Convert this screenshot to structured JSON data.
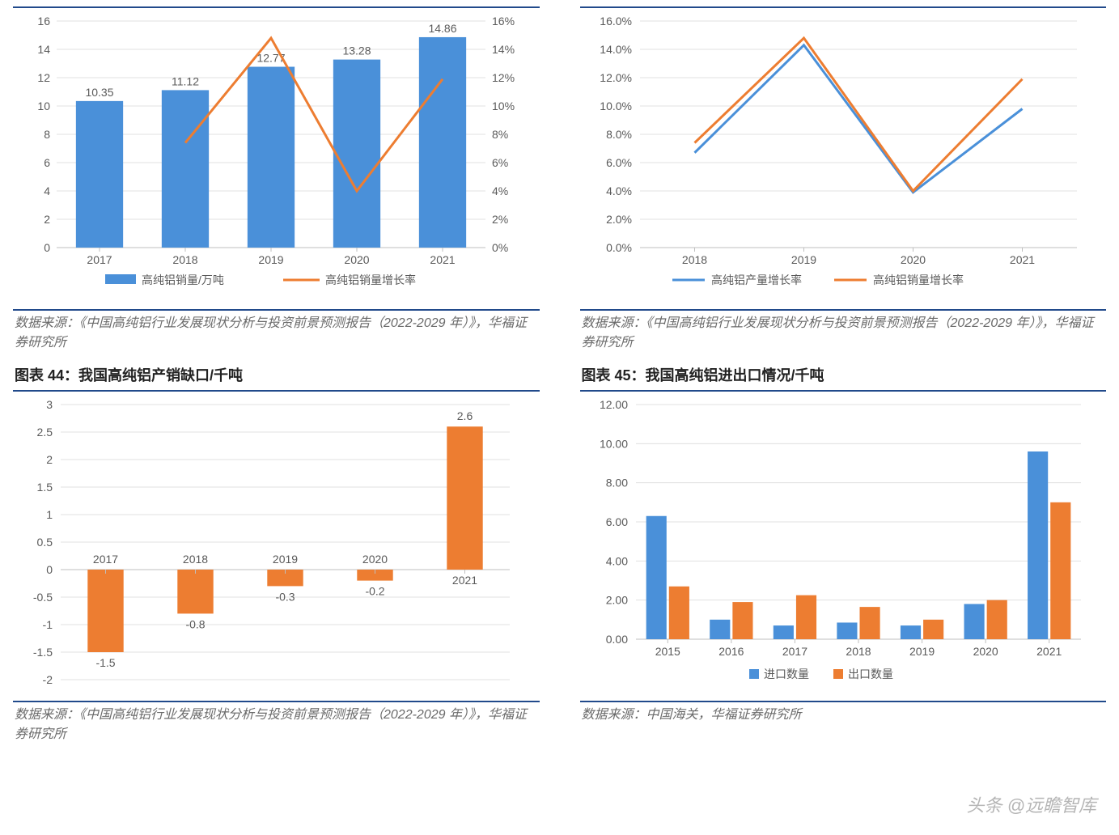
{
  "colors": {
    "blue": "#4a90d9",
    "orange": "#ed7d31",
    "grid": "#e0e0e0",
    "axis": "#bfbfbf",
    "border": "#214a8b",
    "text": "#5a5a5a"
  },
  "watermark": "头条 @远瞻智库",
  "panels": {
    "tl": {
      "source": "数据来源：《中国高纯铝行业发展现状分析与投资前景预测报告（2022-2029 年）》，华福证券研究所",
      "chart": {
        "type": "bar+line-dual-axis",
        "categories": [
          "2017",
          "2018",
          "2019",
          "2020",
          "2021"
        ],
        "bar_values": [
          10.35,
          11.12,
          12.77,
          13.28,
          14.86
        ],
        "bar_labels": [
          "10.35",
          "11.12",
          "12.77",
          "13.28",
          "14.86"
        ],
        "bar_color": "#4a90d9",
        "line_values": [
          null,
          7.4,
          14.8,
          4.0,
          11.9
        ],
        "line_color": "#ed7d31",
        "y_left": {
          "min": 0,
          "max": 16,
          "step": 2
        },
        "y_right": {
          "min": 0,
          "max": 16,
          "step": 2,
          "suffix": "%"
        },
        "legend": [
          {
            "label": "高纯铝销量/万吨",
            "type": "bar",
            "color": "#4a90d9"
          },
          {
            "label": "高纯铝销量增长率",
            "type": "line",
            "color": "#ed7d31"
          }
        ],
        "bar_width": 0.55,
        "line_width": 3
      }
    },
    "tr": {
      "source": "数据来源：《中国高纯铝行业发展现状分析与投资前景预测报告（2022-2029 年）》，华福证券研究所",
      "chart": {
        "type": "line",
        "categories": [
          "2018",
          "2019",
          "2020",
          "2021"
        ],
        "series": [
          {
            "name": "高纯铝产量增长率",
            "color": "#4a90d9",
            "values": [
              6.7,
              14.3,
              3.9,
              9.8
            ]
          },
          {
            "name": "高纯铝销量增长率",
            "color": "#ed7d31",
            "values": [
              7.4,
              14.8,
              4.0,
              11.9
            ]
          }
        ],
        "y": {
          "min": 0,
          "max": 16,
          "step": 2,
          "format": "pct1"
        },
        "line_width": 3
      }
    },
    "bl": {
      "title": "图表 44：我国高纯铝产销缺口/千吨",
      "source": "数据来源：《中国高纯铝行业发展现状分析与投资前景预测报告（2022-2029 年）》，华福证券研究所",
      "chart": {
        "type": "bar",
        "categories": [
          "2017",
          "2018",
          "2019",
          "2020",
          "2021"
        ],
        "values": [
          -1.5,
          -0.8,
          -0.3,
          -0.2,
          2.6
        ],
        "labels": [
          "-1.5",
          "-0.8",
          "-0.3",
          "-0.2",
          "2.6"
        ],
        "color": "#ed7d31",
        "y": {
          "min": -2,
          "max": 3,
          "step": 0.5
        },
        "bar_width": 0.4
      }
    },
    "br": {
      "title": "图表 45：我国高纯铝进出口情况/千吨",
      "source": "数据来源：中国海关，华福证券研究所",
      "chart": {
        "type": "grouped-bar",
        "categories": [
          "2015",
          "2016",
          "2017",
          "2018",
          "2019",
          "2020",
          "2021"
        ],
        "series": [
          {
            "name": "进口数量",
            "color": "#4a90d9",
            "values": [
              6.3,
              1.0,
              0.7,
              0.85,
              0.7,
              1.8,
              9.6
            ]
          },
          {
            "name": "出口数量",
            "color": "#ed7d31",
            "values": [
              2.7,
              1.9,
              2.25,
              1.65,
              1.0,
              2.0,
              7.0
            ]
          }
        ],
        "y": {
          "min": 0,
          "max": 12,
          "step": 2,
          "format": "fix2"
        },
        "bar_width": 0.32
      }
    }
  }
}
